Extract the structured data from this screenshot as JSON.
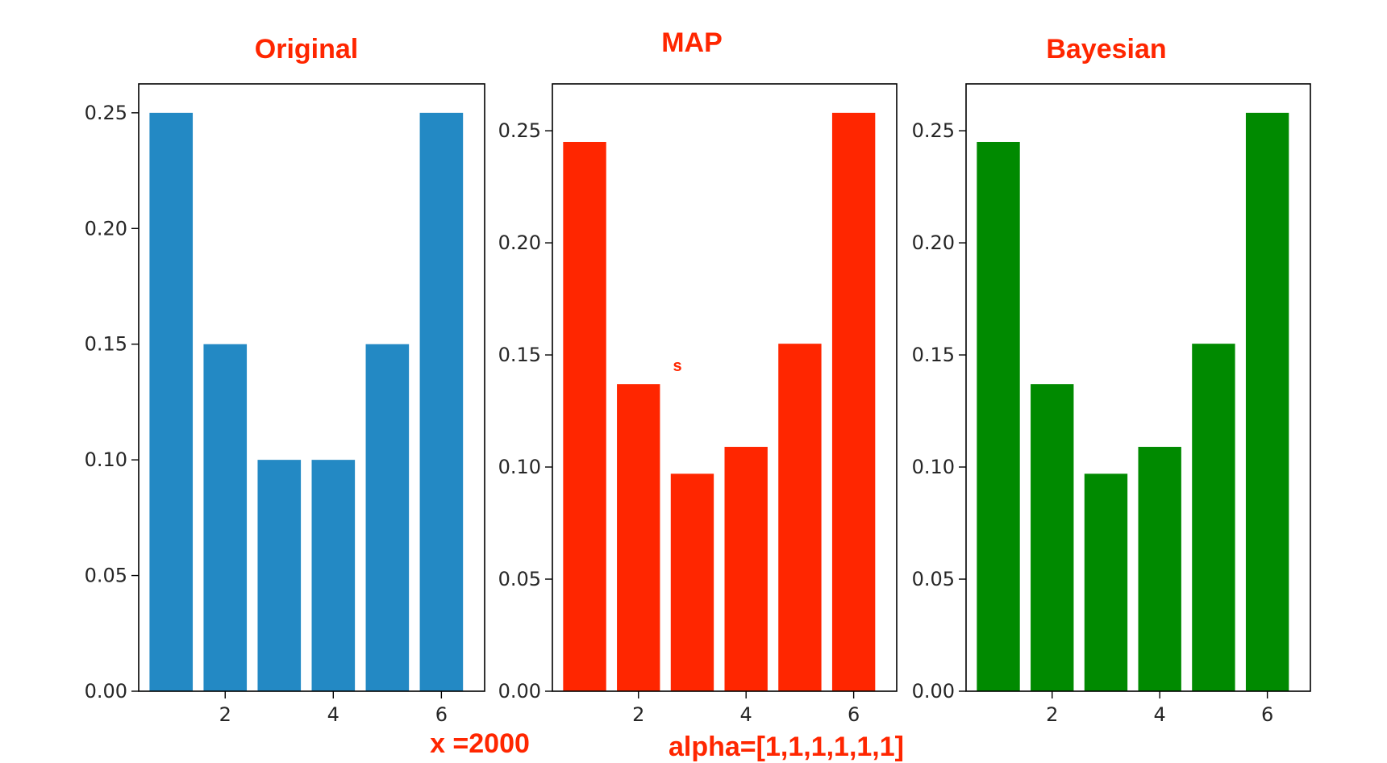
{
  "chart_data": [
    {
      "type": "bar",
      "title": "Original",
      "color": "#2389c4",
      "x": [
        1,
        2,
        3,
        4,
        5,
        6
      ],
      "values": [
        0.25,
        0.15,
        0.1,
        0.1,
        0.15,
        0.25
      ],
      "xticks": [
        "2",
        "4",
        "6"
      ],
      "yticks": [
        "0.00",
        "0.05",
        "0.10",
        "0.15",
        "0.20",
        "0.25"
      ],
      "ylim": [
        0,
        0.2625
      ],
      "xlim": [
        0.4,
        6.8
      ],
      "xlabel": "",
      "ylabel": "",
      "grid": false
    },
    {
      "type": "bar",
      "title": "MAP",
      "color": "#ff2600",
      "x": [
        1,
        2,
        3,
        4,
        5,
        6
      ],
      "values": [
        0.245,
        0.137,
        0.097,
        0.109,
        0.155,
        0.258
      ],
      "xticks": [
        "2",
        "4",
        "6"
      ],
      "yticks": [
        "0.00",
        "0.05",
        "0.10",
        "0.15",
        "0.20",
        "0.25"
      ],
      "ylim": [
        0,
        0.2709
      ],
      "xlim": [
        0.4,
        6.8
      ],
      "xlabel": "",
      "ylabel": "",
      "grid": false
    },
    {
      "type": "bar",
      "title": "Bayesian",
      "color": "#008a00",
      "x": [
        1,
        2,
        3,
        4,
        5,
        6
      ],
      "values": [
        0.245,
        0.137,
        0.097,
        0.109,
        0.155,
        0.258
      ],
      "xticks": [
        "2",
        "4",
        "6"
      ],
      "yticks": [
        "0.00",
        "0.05",
        "0.10",
        "0.15",
        "0.20",
        "0.25"
      ],
      "ylim": [
        0,
        0.2709
      ],
      "xlim": [
        0.4,
        6.8
      ],
      "xlabel": "",
      "ylabel": "",
      "grid": false
    }
  ],
  "annotations": {
    "sample_size": "x =2000",
    "prior": "alpha=[1,1,1,1,1,1]",
    "stray_mark": "s"
  }
}
